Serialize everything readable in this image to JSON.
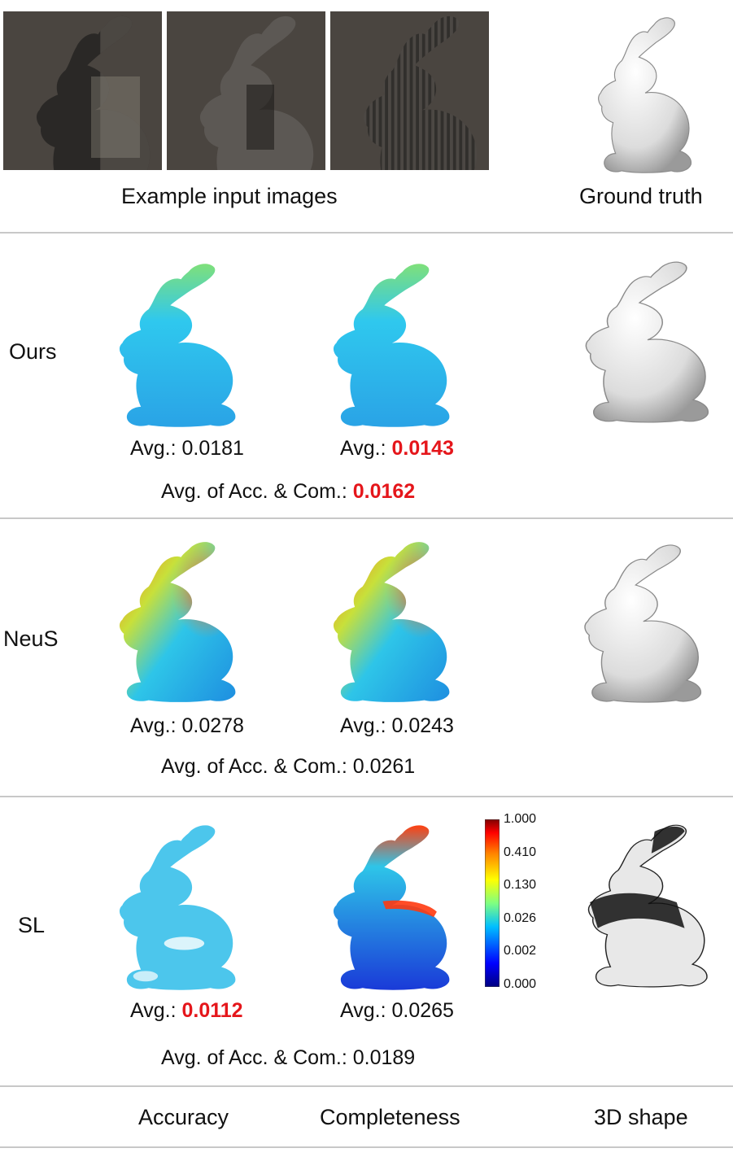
{
  "header": {
    "input_caption": "Example input images",
    "gt_caption": "Ground truth"
  },
  "rows": [
    {
      "method": "Ours",
      "acc_prefix": "Avg.: ",
      "acc_value": "0.0181",
      "com_prefix": "Avg.: ",
      "com_value": "0.0143",
      "mean_prefix": "Avg. of Acc. & Com.: ",
      "mean_value": "0.0162"
    },
    {
      "method": "NeuS",
      "acc_prefix": "Avg.: ",
      "acc_value": "0.0278",
      "com_prefix": "Avg.: ",
      "com_value": "0.0243",
      "mean_prefix": "Avg. of Acc. & Com.: ",
      "mean_value": "0.0261"
    },
    {
      "method": "SL",
      "acc_prefix": "Avg.: ",
      "acc_value": "0.0112",
      "com_prefix": "Avg.: ",
      "com_value": "0.0265",
      "mean_prefix": "Avg. of Acc. & Com.: ",
      "mean_value": "0.0189"
    }
  ],
  "colorbar": {
    "ticks": [
      "1.000",
      "0.410",
      "0.130",
      "0.026",
      "0.002",
      "0.000"
    ],
    "colors": [
      "#00007f",
      "#0000ff",
      "#00bfff",
      "#80ff80",
      "#ffff00",
      "#ff8000",
      "#ff0000",
      "#7f0000"
    ]
  },
  "footer": {
    "col1": "Accuracy",
    "col2": "Completeness",
    "col3": "3D shape"
  },
  "colors": {
    "best": "#e5161b",
    "divider": "#c8c8c8"
  }
}
